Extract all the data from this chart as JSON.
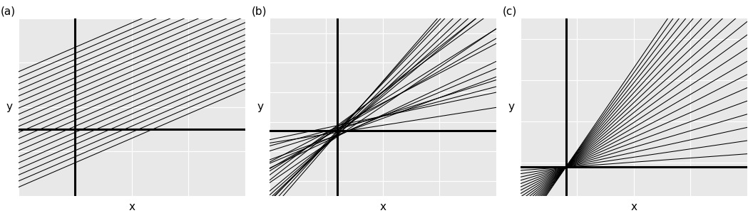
{
  "n_lines": 20,
  "seed": 42,
  "bg_color": "#E8E8E8",
  "fig_bg": "#FFFFFF",
  "line_color": "#000000",
  "ref_lw": 2.2,
  "model_lw": 0.75,
  "panel_labels": [
    "(a)",
    "(b)",
    "(c)"
  ],
  "xlabel": "x",
  "ylabel": "y",
  "grid_color": "#FFFFFF",
  "grid_lw": 0.8,
  "xlim": [
    0,
    4
  ],
  "ylim_a": [
    -1.0,
    3.0
  ],
  "ylim_b": [
    -2.5,
    3.5
  ],
  "ylim_c": [
    -0.8,
    3.5
  ],
  "vline_x_a": 1.0,
  "hline_y_a": 0.5,
  "vline_x_b": 1.2,
  "hline_y_b": -0.3,
  "vline_x_c": 0.8,
  "hline_y_c": -0.1,
  "common_slope_a": 0.55,
  "intercepts_a_min": -0.8,
  "intercepts_a_max": 1.8,
  "slopes_b_min": 0.3,
  "slopes_b_max": 2.2,
  "slopes_c_min": 0.1,
  "slopes_c_max": 2.0
}
